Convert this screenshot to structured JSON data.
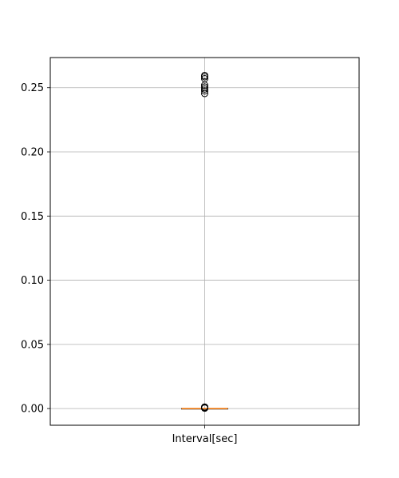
{
  "chart_data": {
    "type": "box",
    "categories": [
      "Interval[sec]"
    ],
    "box": {
      "q1": 0.0,
      "median": 0.0,
      "q3": 0.0,
      "whisker_low": 0.0,
      "whisker_high": 0.0
    },
    "outliers": [
      0.2455,
      0.2475,
      0.249,
      0.2505,
      0.252,
      0.257,
      0.2585,
      0.2595,
      0.0003,
      0.0006,
      0.0009,
      0.0012
    ],
    "ylim": [
      -0.013,
      0.2735
    ],
    "yticks": [
      0.0,
      0.05,
      0.1,
      0.15,
      0.2,
      0.25
    ],
    "ytick_labels": [
      "0.00",
      "0.05",
      "0.10",
      "0.15",
      "0.20",
      "0.25"
    ],
    "grid": true,
    "colors": {
      "median": "#ff7f0e",
      "box": "#000000",
      "grid": "#b0b0b0",
      "outlier": "#000000"
    }
  }
}
